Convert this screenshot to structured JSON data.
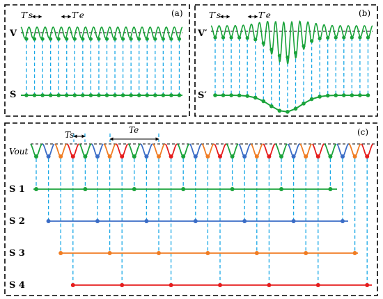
{
  "panels": {
    "a": {
      "tag": "(a)",
      "signal_label": "V",
      "sampled_label": "S",
      "period_labels": {
        "sample": "T′s",
        "equivalent": "T′e"
      }
    },
    "b": {
      "tag": "(b)",
      "signal_label": "V′",
      "sampled_label": "S′",
      "period_labels": {
        "sample": "T′s",
        "equivalent": "T′e"
      }
    },
    "c": {
      "tag": "(c)",
      "signal_label": "Vout",
      "period_labels": {
        "sample": "Ts",
        "equivalent": "Te"
      },
      "channels": [
        {
          "label": "S 1",
          "color": "#1aa33a"
        },
        {
          "label": "S 2",
          "color": "#3a6cc6"
        },
        {
          "label": "S 3",
          "color": "#f07c22"
        },
        {
          "label": "S 4",
          "color": "#e61c1c"
        }
      ]
    }
  },
  "colors": {
    "signal": "#1aa33a",
    "sample_line": "#19a8e6",
    "frame": "#000000"
  }
}
